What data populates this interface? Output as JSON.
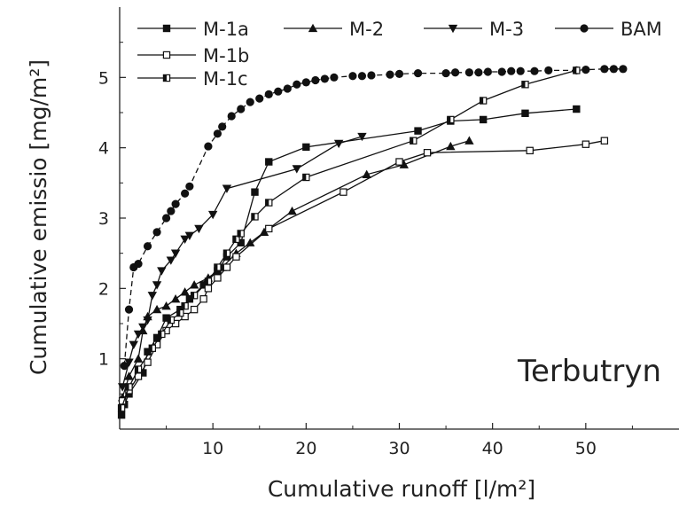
{
  "chart_data": {
    "type": "line",
    "xlabel": "Cumulative runoff [l/m²]",
    "ylabel": "Cumulative emissio [mg/m²]",
    "annotation": "Terbutryn",
    "xlim": [
      0,
      60
    ],
    "ylim": [
      0,
      6
    ],
    "x_ticks": [
      "10",
      "20",
      "30",
      "40",
      "50"
    ],
    "y_ticks": [
      "1",
      "2",
      "3",
      "4",
      "5"
    ],
    "x_tick_values": [
      10,
      20,
      30,
      40,
      50
    ],
    "y_tick_values": [
      1,
      2,
      3,
      4,
      5
    ],
    "grid": false,
    "legend_position": "top",
    "series": [
      {
        "name": "M-1a",
        "marker": "square-filled",
        "points": [
          [
            0.2,
            0.2
          ],
          [
            0.5,
            0.35
          ],
          [
            1.0,
            0.5
          ],
          [
            2.5,
            0.8
          ],
          [
            3.0,
            1.1
          ],
          [
            4.0,
            1.3
          ],
          [
            5.0,
            1.58
          ],
          [
            6.5,
            1.7
          ],
          [
            7.5,
            1.85
          ],
          [
            9.0,
            2.05
          ],
          [
            10.5,
            2.25
          ],
          [
            11.5,
            2.45
          ],
          [
            13.0,
            2.65
          ],
          [
            14.5,
            3.37
          ],
          [
            16.0,
            3.8
          ],
          [
            20.0,
            4.01
          ],
          [
            32.0,
            4.24
          ],
          [
            35.5,
            4.38
          ],
          [
            39.0,
            4.4
          ],
          [
            43.5,
            4.49
          ],
          [
            49.0,
            4.55
          ]
        ]
      },
      {
        "name": "M-2",
        "marker": "triangle-up-filled",
        "points": [
          [
            0.3,
            0.45
          ],
          [
            1.0,
            0.75
          ],
          [
            2.0,
            1.0
          ],
          [
            2.5,
            1.4
          ],
          [
            3.0,
            1.6
          ],
          [
            4.0,
            1.7
          ],
          [
            5.0,
            1.75
          ],
          [
            6.0,
            1.85
          ],
          [
            7.0,
            1.95
          ],
          [
            8.0,
            2.05
          ],
          [
            9.5,
            2.15
          ],
          [
            11.0,
            2.3
          ],
          [
            12.5,
            2.5
          ],
          [
            14.0,
            2.65
          ],
          [
            15.5,
            2.8
          ],
          [
            18.5,
            3.1
          ],
          [
            26.5,
            3.62
          ],
          [
            30.5,
            3.76
          ],
          [
            35.5,
            4.02
          ],
          [
            37.5,
            4.1
          ]
        ]
      },
      {
        "name": "M-3",
        "marker": "triangle-down-filled",
        "points": [
          [
            0.3,
            0.6
          ],
          [
            1.0,
            0.95
          ],
          [
            1.5,
            1.2
          ],
          [
            2.0,
            1.35
          ],
          [
            2.5,
            1.45
          ],
          [
            3.0,
            1.55
          ],
          [
            3.5,
            1.9
          ],
          [
            4.0,
            2.05
          ],
          [
            4.5,
            2.25
          ],
          [
            5.5,
            2.4
          ],
          [
            6.0,
            2.5
          ],
          [
            7.0,
            2.7
          ],
          [
            7.5,
            2.75
          ],
          [
            8.5,
            2.85
          ],
          [
            10.0,
            3.05
          ],
          [
            11.5,
            3.42
          ],
          [
            19.0,
            3.7
          ],
          [
            23.5,
            4.06
          ],
          [
            26.0,
            4.16
          ]
        ]
      },
      {
        "name": "BAM",
        "marker": "circle-filled",
        "points": [
          [
            0.5,
            0.9
          ],
          [
            1.0,
            1.7
          ],
          [
            1.5,
            2.3
          ],
          [
            2.0,
            2.35
          ],
          [
            3.0,
            2.6
          ],
          [
            4.0,
            2.8
          ],
          [
            5.0,
            3.0
          ],
          [
            5.5,
            3.1
          ],
          [
            6.0,
            3.2
          ],
          [
            7.0,
            3.35
          ],
          [
            7.5,
            3.45
          ],
          [
            9.5,
            4.02
          ],
          [
            10.5,
            4.2
          ],
          [
            11.0,
            4.3
          ],
          [
            12.0,
            4.45
          ],
          [
            13.0,
            4.55
          ],
          [
            14.0,
            4.65
          ],
          [
            15.0,
            4.7
          ],
          [
            16.0,
            4.76
          ],
          [
            17.0,
            4.8
          ],
          [
            18.0,
            4.84
          ],
          [
            19.0,
            4.9
          ],
          [
            20.0,
            4.93
          ],
          [
            21.0,
            4.96
          ],
          [
            22.0,
            4.98
          ],
          [
            23.0,
            5.0
          ],
          [
            25.0,
            5.02
          ],
          [
            26.0,
            5.02
          ],
          [
            27.0,
            5.03
          ],
          [
            29.0,
            5.04
          ],
          [
            30.0,
            5.05
          ],
          [
            32.0,
            5.06
          ],
          [
            35.0,
            5.06
          ],
          [
            36.0,
            5.07
          ],
          [
            37.5,
            5.07
          ],
          [
            38.5,
            5.07
          ],
          [
            39.5,
            5.08
          ],
          [
            41.0,
            5.08
          ],
          [
            42.0,
            5.09
          ],
          [
            43.0,
            5.09
          ],
          [
            44.5,
            5.09
          ],
          [
            46.0,
            5.1
          ],
          [
            49.0,
            5.1
          ],
          [
            50.0,
            5.11
          ],
          [
            52.0,
            5.12
          ],
          [
            53.0,
            5.12
          ],
          [
            54.0,
            5.12
          ]
        ]
      },
      {
        "name": "M-1b",
        "marker": "square-open",
        "points": [
          [
            0.3,
            0.4
          ],
          [
            1.0,
            0.55
          ],
          [
            2.0,
            0.75
          ],
          [
            3.0,
            0.95
          ],
          [
            4.0,
            1.2
          ],
          [
            5.0,
            1.4
          ],
          [
            6.0,
            1.5
          ],
          [
            7.0,
            1.6
          ],
          [
            8.0,
            1.7
          ],
          [
            9.0,
            1.85
          ],
          [
            9.5,
            2.0
          ],
          [
            10.5,
            2.15
          ],
          [
            11.5,
            2.3
          ],
          [
            12.5,
            2.45
          ],
          [
            16.0,
            2.85
          ],
          [
            24.0,
            3.37
          ],
          [
            30.0,
            3.8
          ],
          [
            33.0,
            3.93
          ],
          [
            44.0,
            3.96
          ],
          [
            50.0,
            4.05
          ],
          [
            52.0,
            4.1
          ]
        ]
      },
      {
        "name": "M-1c",
        "marker": "square-half",
        "points": [
          [
            0.2,
            0.3
          ],
          [
            1.0,
            0.6
          ],
          [
            2.0,
            0.85
          ],
          [
            3.5,
            1.15
          ],
          [
            4.5,
            1.35
          ],
          [
            5.5,
            1.55
          ],
          [
            6.5,
            1.65
          ],
          [
            7.0,
            1.75
          ],
          [
            8.0,
            1.9
          ],
          [
            9.5,
            2.1
          ],
          [
            10.5,
            2.3
          ],
          [
            11.5,
            2.5
          ],
          [
            12.5,
            2.7
          ],
          [
            13.0,
            2.78
          ],
          [
            14.5,
            3.02
          ],
          [
            16.0,
            3.22
          ],
          [
            20.0,
            3.58
          ],
          [
            31.5,
            4.1
          ],
          [
            35.5,
            4.4
          ],
          [
            39.0,
            4.67
          ],
          [
            43.5,
            4.9
          ],
          [
            49.0,
            5.1
          ]
        ]
      }
    ],
    "legend_rows": [
      [
        "M-1a",
        "M-2",
        "M-3",
        "BAM"
      ],
      [
        "M-1b"
      ],
      [
        "M-1c"
      ]
    ]
  }
}
